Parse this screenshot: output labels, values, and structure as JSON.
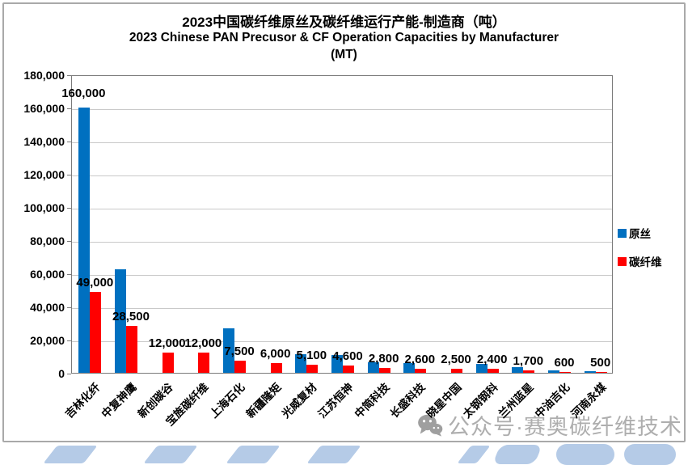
{
  "title": {
    "line1": "2023中国碳纤维原丝及碳纤维运行产能-制造商（吨）",
    "line2": "2023 Chinese PAN Precusor & CF Operation Capacities by Manufacturer",
    "line3": "(MT)"
  },
  "legend": {
    "items": [
      {
        "label": "原丝",
        "color": "#0070C0"
      },
      {
        "label": "碳纤维",
        "color": "#FF0000"
      }
    ]
  },
  "watermark": {
    "icon": "wechat-icon",
    "text": "公众号·赛奥碳纤维技术"
  },
  "colors": {
    "precursor_blue": "#0070C0",
    "cf_red": "#FF0000",
    "gridline": "#C9C9C9",
    "axis": "#7A7A7A",
    "watermark_gray": "#AEAEAE",
    "decor_blue": "#B5CBE7"
  },
  "chart_data": {
    "type": "bar",
    "title": "2023中国碳纤维原丝及碳纤维运行产能-制造商（吨）",
    "subtitle": "2023 Chinese PAN Precusor & CF Operation Capacities by Manufacturer (MT)",
    "categories": [
      "吉林化纤",
      "中复神鹰",
      "新创碳谷",
      "宝旌碳纤维",
      "上海石化",
      "新疆隆矩",
      "光威复材",
      "江苏恒神",
      "中简科技",
      "长盛科技",
      "晓星中国",
      "太钢钢科",
      "兰州蓝星",
      "中油吉化",
      "河南永煤"
    ],
    "series": [
      {
        "name": "原丝",
        "color": "#0070C0",
        "values": [
          160000,
          62500,
          0,
          0,
          27000,
          0,
          11000,
          10500,
          6500,
          6000,
          0,
          5300,
          3200,
          1300,
          800
        ],
        "labels": [
          "160,000",
          "",
          "",
          "",
          "",
          "",
          "",
          "",
          "",
          "",
          "",
          "",
          "",
          "",
          ""
        ]
      },
      {
        "name": "碳纤维",
        "color": "#FF0000",
        "values": [
          49000,
          28500,
          12000,
          12000,
          7500,
          6000,
          5100,
          4600,
          2800,
          2600,
          2500,
          2400,
          1700,
          600,
          500
        ],
        "labels": [
          "49,000",
          "28,500",
          "12,000",
          "12,000",
          "7,500",
          "6,000",
          "5,100",
          "4,600",
          "2,800",
          "2,600",
          "2,500",
          "2,400",
          "1,700",
          "600",
          "500"
        ]
      }
    ],
    "y_ticks": [
      "180,000",
      "160,000",
      "140,000",
      "120,000",
      "100,000",
      "80,000",
      "60,000",
      "40,000",
      "20,000",
      "0"
    ],
    "ylim": [
      0,
      180000
    ],
    "grid": true,
    "legend_position": "right"
  }
}
